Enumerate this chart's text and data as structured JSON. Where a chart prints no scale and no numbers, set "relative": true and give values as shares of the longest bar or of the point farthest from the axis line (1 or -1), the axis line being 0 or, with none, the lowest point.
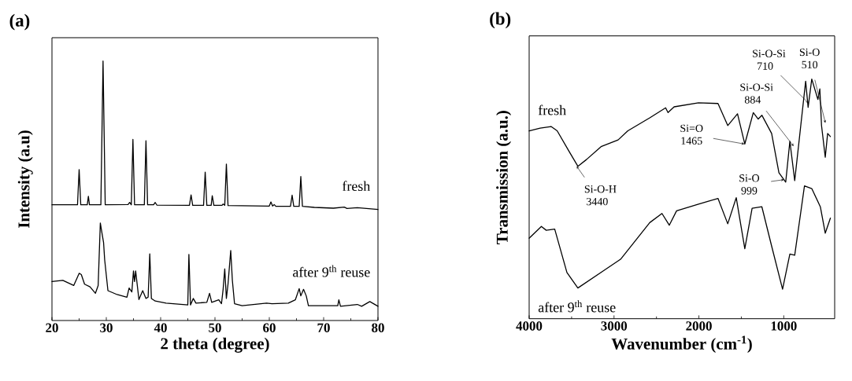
{
  "chart_data": [
    {
      "type": "line",
      "title": "(a)",
      "xlabel": "2 theta (degree)",
      "ylabel": "Intensity (a.u)",
      "relative": true,
      "xlim": [
        20,
        80
      ],
      "xticks": [
        20,
        30,
        40,
        50,
        60,
        70,
        80
      ],
      "series": [
        {
          "name": "fresh",
          "color": "#000000",
          "x": [
            20,
            24.7,
            25.0,
            25.3,
            26.5,
            26.7,
            26.9,
            29.0,
            29.4,
            29.8,
            34.0,
            34.3,
            34.6,
            34.9,
            35.2,
            37.0,
            37.3,
            37.6,
            38.7,
            39.0,
            39.3,
            45.3,
            45.6,
            45.9,
            47.9,
            48.2,
            48.5,
            49.3,
            49.5,
            49.8,
            51.3,
            51.5,
            51.8,
            52.1,
            52.4,
            60.0,
            60.3,
            60.6,
            60.9,
            61.2,
            63.9,
            64.2,
            64.5,
            65.5,
            65.8,
            66.1,
            68.3,
            71.8,
            73.8,
            74.3,
            76.2,
            80
          ],
          "values": [
            0.446,
            0.446,
            0.582,
            0.446,
            0.446,
            0.479,
            0.446,
            0.446,
            1.0,
            0.446,
            0.447,
            0.455,
            0.446,
            0.698,
            0.446,
            0.446,
            0.693,
            0.446,
            0.446,
            0.455,
            0.445,
            0.444,
            0.484,
            0.444,
            0.444,
            0.572,
            0.444,
            0.444,
            0.481,
            0.444,
            0.444,
            0.449,
            0.444,
            0.603,
            0.443,
            0.441,
            0.457,
            0.441,
            0.447,
            0.44,
            0.44,
            0.483,
            0.44,
            0.44,
            0.555,
            0.44,
            0.436,
            0.433,
            0.437,
            0.432,
            0.435,
            0.428
          ]
        },
        {
          "name": "after 9$^{th}$ reuse",
          "color": "#000000",
          "x": [
            20,
            22,
            24,
            25.0,
            25.4,
            26,
            27,
            28,
            28.5,
            28.9,
            29.2,
            29.5,
            29.7,
            30.3,
            32,
            33.8,
            34.2,
            34.7,
            35.0,
            35.2,
            35.4,
            36,
            36.7,
            37.3,
            37.7,
            38.0,
            38.3,
            39,
            41,
            45.0,
            45.2,
            45.5,
            46,
            46.5,
            48.5,
            49.0,
            49.4,
            50.7,
            51.2,
            51.5,
            51.8,
            52.1,
            52.4,
            52.9,
            53.2,
            53.6,
            55,
            59.5,
            60.5,
            63.5,
            64.8,
            65.5,
            65.8,
            66.3,
            66.8,
            67.2,
            70,
            72.6,
            72.8,
            73.1,
            76.2,
            77,
            78.5,
            80
          ],
          "values": [
            0.15,
            0.155,
            0.135,
            0.182,
            0.177,
            0.14,
            0.13,
            0.105,
            0.135,
            0.376,
            0.337,
            0.3,
            0.234,
            0.115,
            0.1,
            0.09,
            0.125,
            0.11,
            0.191,
            0.15,
            0.191,
            0.081,
            0.115,
            0.085,
            0.09,
            0.257,
            0.085,
            0.075,
            0.067,
            0.06,
            0.255,
            0.06,
            0.085,
            0.067,
            0.07,
            0.105,
            0.07,
            0.08,
            0.065,
            0.12,
            0.199,
            0.085,
            0.14,
            0.27,
            0.155,
            0.065,
            0.057,
            0.067,
            0.065,
            0.067,
            0.08,
            0.123,
            0.095,
            0.12,
            0.095,
            0.057,
            0.057,
            0.057,
            0.08,
            0.055,
            0.062,
            0.055,
            0.073,
            0.055
          ]
        }
      ]
    },
    {
      "type": "line",
      "title": "(b)",
      "xlabel": "Wavenumber (cm$^{-1}$)",
      "ylabel": "Transmission (a.u.)",
      "relative": true,
      "xlim": [
        4000,
        400
      ],
      "xticks": [
        4000,
        3000,
        2000,
        1000
      ],
      "series": [
        {
          "name": "fresh",
          "color": "#000000",
          "x": [
            4000,
            3871,
            3742,
            3670,
            3526,
            3426,
            3325,
            3153,
            2952,
            2837,
            2579,
            2392,
            2364,
            2292,
            2005,
            1775,
            1660,
            1545,
            1459,
            1359,
            1301,
            1258,
            1143,
            1057,
            977,
            928,
            871,
            742,
            713,
            670,
            598,
            575,
            555,
            511,
            483,
            450
          ],
          "values": [
            0.784,
            0.795,
            0.802,
            0.784,
            0.696,
            0.636,
            0.664,
            0.718,
            0.746,
            0.784,
            0.838,
            0.88,
            0.86,
            0.884,
            0.901,
            0.898,
            0.806,
            0.855,
            0.729,
            0.86,
            0.833,
            0.849,
            0.773,
            0.609,
            0.57,
            0.74,
            0.576,
            0.991,
            0.882,
            1.0,
            0.915,
            0.959,
            0.806,
            0.674,
            0.773,
            0.76
          ]
        },
        {
          "name": "after 9$^{th}$ reuse",
          "color": "#000000",
          "x": [
            4000,
            3856,
            3799,
            3699,
            3555,
            3426,
            3153,
            2923,
            2579,
            2435,
            2349,
            2263,
            2005,
            1775,
            1660,
            1560,
            1459,
            1373,
            1258,
            1143,
            1014,
            928,
            871,
            756,
            670,
            569,
            511,
            450
          ],
          "values": [
            0.336,
            0.385,
            0.369,
            0.374,
            0.193,
            0.128,
            0.193,
            0.248,
            0.401,
            0.439,
            0.39,
            0.45,
            0.478,
            0.502,
            0.396,
            0.505,
            0.292,
            0.461,
            0.467,
            0.303,
            0.123,
            0.27,
            0.265,
            0.554,
            0.543,
            0.467,
            0.357,
            0.42
          ]
        }
      ],
      "annotations": [
        {
          "text": "Si-O-H 3440",
          "x": 3440,
          "y": 0.636
        },
        {
          "text": "Si=O 1465",
          "x": 1465,
          "y": 0.729
        },
        {
          "text": "Si-O 999",
          "x": 999,
          "y": 0.58
        },
        {
          "text": "Si-O-Si 884",
          "x": 884,
          "y": 0.72
        },
        {
          "text": "Si-O-Si 710",
          "x": 710,
          "y": 0.9
        },
        {
          "text": "Si-O 510",
          "x": 510,
          "y": 0.817
        }
      ]
    }
  ]
}
